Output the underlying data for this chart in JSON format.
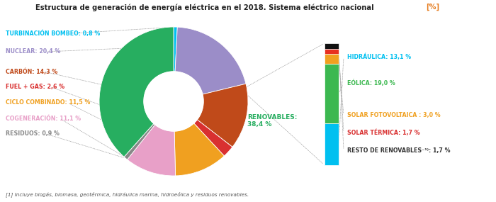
{
  "title": "Estructura de generación de energía eléctrica en el 2018. Sistema eléctrico nacional",
  "title_bracket": "[%]",
  "footnote": "[1] Incluye biogás, biomasa, geotérmica, hidráulica marina, hidroeólica y residuos renovables.",
  "outer_slices": [
    {
      "label": "TURBINACIÓN BOMBEO",
      "value": 0.8,
      "color": "#00C0F0"
    },
    {
      "label": "NUCLEAR",
      "value": 20.4,
      "color": "#9B8DC8"
    },
    {
      "label": "CARBÓN",
      "value": 14.3,
      "color": "#C04A1A"
    },
    {
      "label": "FUEL + GAS",
      "value": 2.6,
      "color": "#D93030"
    },
    {
      "label": "CICLO COMBINADO",
      "value": 11.5,
      "color": "#F0A020"
    },
    {
      "label": "COGENERACIÓN",
      "value": 11.1,
      "color": "#E8A0C8"
    },
    {
      "label": "RESIDUOS",
      "value": 0.9,
      "color": "#888888"
    },
    {
      "label": "RENOVABLES",
      "value": 38.4,
      "color": "#27AE60"
    }
  ],
  "inner_slices": [
    {
      "label": "HIDRÁULICA",
      "value": 13.1,
      "color": "#00C0F0"
    },
    {
      "label": "EÓLICA",
      "value": 19.0,
      "color": "#3CB850"
    },
    {
      "label": "SOLAR FOTOVOLTAICA",
      "value": 3.0,
      "color": "#F0A020"
    },
    {
      "label": "SOLAR TÉRMICA",
      "value": 1.7,
      "color": "#E83020"
    },
    {
      "label": "RESTO DE RENOVABLES",
      "value": 1.7,
      "color": "#111111"
    }
  ],
  "left_labels": [
    {
      "text": "TURBINACIÓN BOMBEO: 0,8 %",
      "color": "#00C0F0"
    },
    {
      "text": "NUCLEAR: 20,4 %",
      "color": "#9B8DC8"
    },
    {
      "text": "CARBÓN: 14,3 %",
      "color": "#C04A1A"
    },
    {
      "text": "FUEL + GAS: 2,6 %",
      "color": "#D93030"
    },
    {
      "text": "CICLO COMBINADO: 11,5 %",
      "color": "#F0A020"
    },
    {
      "text": "COGENERACIÓN: 11,1 %",
      "color": "#E8A0C8"
    },
    {
      "text": "RESIDUOS: 0,9 %",
      "color": "#888888"
    }
  ],
  "right_labels": [
    {
      "text": "HIDRÁULICA: 13,1 %",
      "color": "#00C0F0"
    },
    {
      "text": "EÓLICA: 19,0 %",
      "color": "#3CB850"
    },
    {
      "text": "SOLAR FOTOVOLTAICA : 3,0 %",
      "color": "#F0A020"
    },
    {
      "text": "SOLAR TÉRMICA: 1,7 %",
      "color": "#D93030"
    },
    {
      "text": "RESTO DE RENOVABLES⁻¹⁾: 1,7 %",
      "color": "#333333"
    }
  ],
  "renovables_label": "RENOVABLES:\n38,4 %",
  "renovables_label_color": "#27AE60",
  "background_color": "#FFFFFF"
}
